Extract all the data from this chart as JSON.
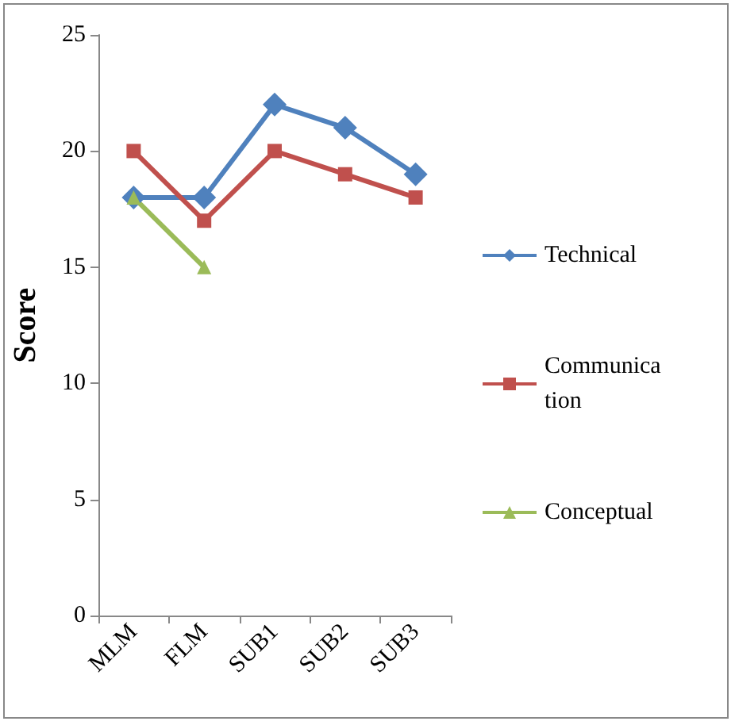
{
  "chart_data": {
    "type": "line",
    "ylabel": "Score",
    "categories": [
      "MLM",
      "FLM",
      "SUB1",
      "SUB2",
      "SUB3"
    ],
    "series": [
      {
        "name": "Technical",
        "color": "#4f81bd",
        "marker": "diamond",
        "values": [
          18,
          18,
          22,
          21,
          19
        ]
      },
      {
        "name": "Communication",
        "color": "#c0504d",
        "marker": "square",
        "values": [
          20,
          17,
          20,
          19,
          18
        ]
      },
      {
        "name": "Conceptual",
        "color": "#9bbb59",
        "marker": "triangle",
        "values": [
          18,
          15,
          null,
          null,
          null
        ]
      }
    ],
    "ylim": [
      0,
      25
    ],
    "yticks": [
      0,
      5,
      10,
      15,
      20,
      25
    ],
    "grid": false,
    "legend": "right"
  }
}
